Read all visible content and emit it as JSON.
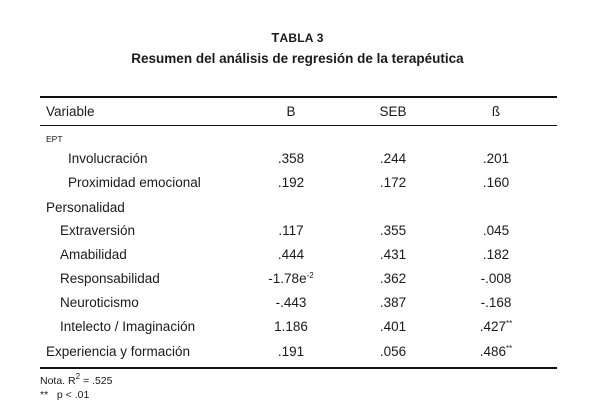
{
  "table": {
    "number_first": "T",
    "number_rest": "ABLA 3",
    "title": "Resumen del análisis de regresión de la terapéutica",
    "headers": {
      "variable": "Variable",
      "b": "B",
      "seb": "SEB",
      "beta": "ß"
    },
    "groups": {
      "ept": "EPT",
      "personalidad": "Personalidad"
    },
    "rows": [
      {
        "label": "Involucración",
        "b": ".358",
        "seb": ".244",
        "beta": ".201"
      },
      {
        "label": "Proximidad emocional",
        "b": ".192",
        "seb": ".172",
        "beta": ".160"
      },
      {
        "label": "Extraversión",
        "b": ".117",
        "seb": ".355",
        "beta": ".045"
      },
      {
        "label": "Amabilidad",
        "b": ".444",
        "seb": ".431",
        "beta": ".182"
      },
      {
        "label": "Responsabilidad",
        "b": "-1.78e",
        "b_sup": "-2",
        "seb": ".362",
        "beta": "-.008"
      },
      {
        "label": "Neuroticismo",
        "b": "-.443",
        "seb": ".387",
        "beta": "-.168"
      },
      {
        "label": "Intelecto / Imaginación",
        "b": "1.186",
        "seb": ".401",
        "beta": ".427",
        "beta_sup": "**"
      },
      {
        "label": "Experiencia y formación",
        "b": ".191",
        "seb": ".056",
        "beta": ".486",
        "beta_sup": "**"
      }
    ],
    "notes": {
      "r2_prefix": "Nota. R",
      "r2_sup": "2",
      "r2_value": " = .525",
      "significance": "**   p < .01"
    }
  }
}
